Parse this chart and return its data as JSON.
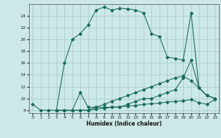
{
  "xlabel": "Humidex (Indice chaleur)",
  "background_color": "#cce8e8",
  "grid_color": "#aacccc",
  "line_color": "#1a6b5a",
  "xlim": [
    -0.5,
    23.5
  ],
  "ylim": [
    7.5,
    26
  ],
  "xticks": [
    0,
    1,
    2,
    3,
    4,
    5,
    6,
    7,
    8,
    9,
    10,
    11,
    12,
    13,
    14,
    15,
    16,
    17,
    18,
    19,
    20,
    21,
    22,
    23
  ],
  "yticks": [
    8,
    10,
    12,
    14,
    16,
    18,
    20,
    22,
    24
  ],
  "line1_x": [
    0,
    1,
    2,
    3,
    4,
    5,
    6,
    7,
    8,
    9,
    10,
    11,
    12,
    13,
    14,
    15,
    16,
    17,
    18,
    19,
    20,
    21,
    22,
    23
  ],
  "line1_y": [
    9,
    8,
    8,
    8,
    16,
    20,
    21,
    22.5,
    25,
    25.5,
    25,
    25.3,
    25.2,
    25,
    24.5,
    21,
    20.5,
    17,
    16.8,
    16.5,
    24.5,
    11.8,
    10.5,
    10
  ],
  "line2_x": [
    3,
    4,
    5,
    6,
    7,
    8,
    9,
    10,
    11,
    12,
    13,
    14,
    15,
    16,
    17,
    18,
    19,
    20,
    21,
    22,
    23
  ],
  "line2_y": [
    8,
    8,
    8,
    11,
    8.5,
    8.5,
    8.5,
    8.5,
    8.5,
    9,
    9.5,
    10,
    10,
    10.5,
    11,
    11.5,
    13.5,
    16.5,
    11.8,
    10.5,
    10
  ],
  "line3_x": [
    3,
    4,
    5,
    6,
    7,
    8,
    9,
    10,
    11,
    12,
    13,
    14,
    15,
    16,
    17,
    18,
    19,
    20,
    21,
    22,
    23
  ],
  "line3_y": [
    8,
    8,
    8,
    8,
    8,
    8.2,
    8.3,
    8.5,
    8.6,
    8.7,
    8.8,
    9,
    9.1,
    9.2,
    9.4,
    9.5,
    9.6,
    9.8,
    9.3,
    9.0,
    9.8
  ],
  "line4_x": [
    3,
    4,
    5,
    6,
    7,
    8,
    9,
    10,
    11,
    12,
    13,
    14,
    15,
    16,
    17,
    18,
    19,
    20,
    21,
    22,
    23
  ],
  "line4_y": [
    8,
    8,
    8,
    8,
    8,
    8.5,
    9,
    9.5,
    10,
    10.5,
    11,
    11.5,
    12,
    12.5,
    13,
    13.5,
    13.8,
    13,
    11.8,
    10.5,
    10
  ]
}
